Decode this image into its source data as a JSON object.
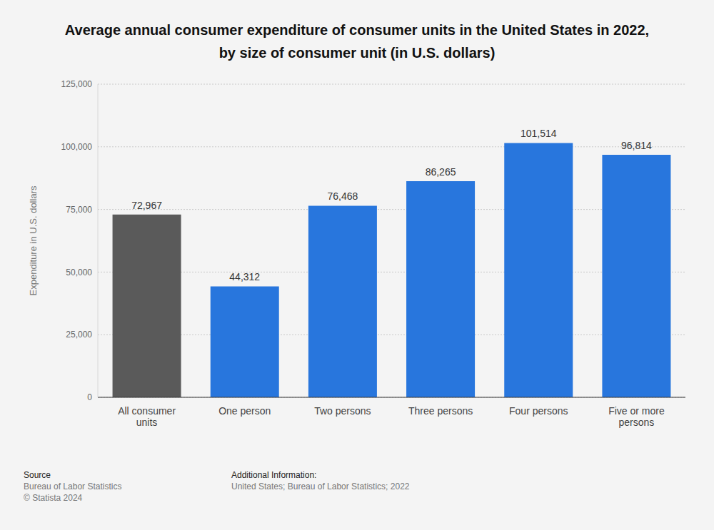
{
  "chart_data": {
    "type": "bar",
    "title": "Average annual consumer expenditure of consumer units in the United States in 2022, by size of consumer unit (in U.S. dollars)",
    "y_label": "Expenditure in U.S. dollars",
    "categories": [
      "All consumer units",
      "One person",
      "Two persons",
      "Three persons",
      "Four persons",
      "Five or more persons"
    ],
    "values": [
      72967,
      44312,
      76468,
      86265,
      101514,
      96814
    ],
    "value_labels": [
      "72,967",
      "44,312",
      "76,468",
      "86,265",
      "101,514",
      "96,814"
    ],
    "colors": [
      "#5a5a5a",
      "#2876dd",
      "#2876dd",
      "#2876dd",
      "#2876dd",
      "#2876dd"
    ],
    "ylim": [
      0,
      125000
    ],
    "yticks": [
      0,
      {
        "value": 25000,
        "label": "25,000"
      },
      {
        "value": 50000,
        "label": "50,000"
      },
      {
        "value": 75000,
        "label": "75,000"
      },
      {
        "value": 100000,
        "label": "100,000"
      },
      {
        "value": 125000,
        "label": "125,000"
      }
    ],
    "grid": true,
    "data_labels": true
  },
  "footer": {
    "source_heading": "Source",
    "source": "Bureau of Labor Statistics",
    "copyright": "© Statista 2024",
    "info_heading": "Additional Information:",
    "info": "United States; Bureau of Labor Statistics; 2022"
  }
}
